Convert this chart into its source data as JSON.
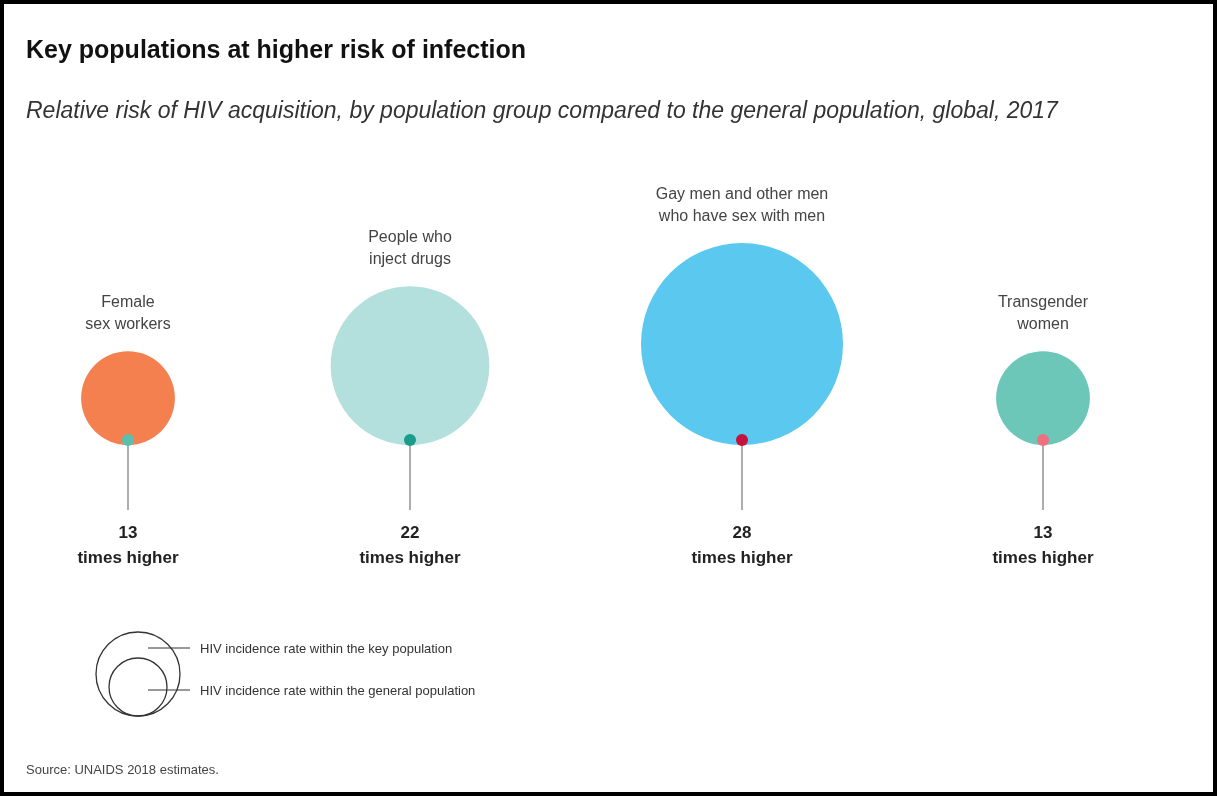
{
  "chart_data": {
    "type": "other",
    "title": "Key populations at higher risk of infection",
    "subtitle": "Relative risk of HIV acquisition, by population group compared to the general population, global, 2017",
    "categories": [
      "Female\nsex workers",
      "People who\ninject drugs",
      "Gay men and other men\nwho have sex with men",
      "Transgender\nwomen"
    ],
    "values": [
      13,
      22,
      28,
      13
    ],
    "colors": [
      "#f4804f",
      "#b3e0dc",
      "#5bc8f0",
      "#6cc7b8"
    ],
    "value_labels": [
      "13 times higher",
      "22 times higher",
      "28 times higher",
      "13 times higher"
    ],
    "annotations": [
      "HIV incidence rate within the key population",
      "HIV incidence rate within the general population",
      "Source: UNAIDS 2018 estimates."
    ]
  }
}
